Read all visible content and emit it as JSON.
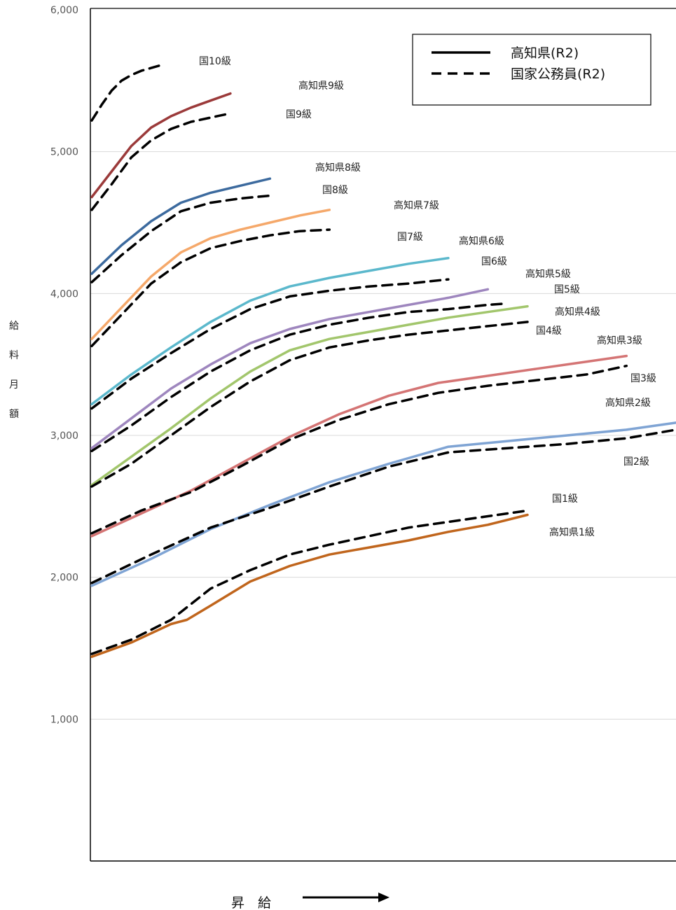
{
  "chart_data": {
    "type": "line",
    "title": "",
    "ylabel": "給料月額",
    "xlabel": "昇給",
    "ylim": [
      0,
      6000
    ],
    "yticks": [
      "1,000",
      "2,000",
      "3,000",
      "4,000",
      "5,000",
      "6,000"
    ],
    "ytick_values": [
      1000,
      2000,
      3000,
      4000,
      5000,
      6000
    ],
    "grid": true,
    "legend_position": "top-right",
    "legend": [
      {
        "label": "高知県(R2)",
        "style": "solid"
      },
      {
        "label": "国家公務員(R2)",
        "style": "dashed"
      }
    ],
    "series": [
      {
        "name": "国10級",
        "style": "dashed",
        "color": "#000000",
        "x": [
          0,
          5,
          10,
          15,
          20,
          25,
          30,
          35
        ],
        "y": [
          5220,
          5330,
          5430,
          5500,
          5540,
          5570,
          5590,
          5610
        ]
      },
      {
        "name": "高知県9級",
        "style": "solid",
        "color": "#9B3A3A",
        "x": [
          0,
          10,
          20,
          30,
          40,
          50,
          60,
          70
        ],
        "y": [
          4680,
          4860,
          5040,
          5170,
          5250,
          5310,
          5360,
          5410
        ]
      },
      {
        "name": "国9級",
        "style": "dashed",
        "color": "#000000",
        "x": [
          0,
          10,
          20,
          30,
          40,
          50,
          60,
          70
        ],
        "y": [
          4590,
          4770,
          4960,
          5080,
          5160,
          5210,
          5240,
          5270
        ]
      },
      {
        "name": "高知県8級",
        "style": "solid",
        "color": "#3C6A9E",
        "x": [
          0,
          15,
          30,
          45,
          60,
          75,
          90
        ],
        "y": [
          4140,
          4340,
          4510,
          4640,
          4710,
          4760,
          4810
        ]
      },
      {
        "name": "国8級",
        "style": "dashed",
        "color": "#000000",
        "x": [
          0,
          15,
          30,
          45,
          60,
          75,
          90
        ],
        "y": [
          4080,
          4270,
          4440,
          4580,
          4640,
          4670,
          4690
        ]
      },
      {
        "name": "高知県7級",
        "style": "solid",
        "color": "#F5A86A",
        "x": [
          0,
          15,
          30,
          45,
          60,
          75,
          90,
          105,
          120
        ],
        "y": [
          3680,
          3900,
          4120,
          4290,
          4390,
          4450,
          4500,
          4550,
          4590
        ]
      },
      {
        "name": "国7級",
        "style": "dashed",
        "color": "#000000",
        "x": [
          0,
          15,
          30,
          45,
          60,
          75,
          90,
          105,
          120
        ],
        "y": [
          3630,
          3850,
          4070,
          4220,
          4320,
          4370,
          4410,
          4440,
          4450
        ]
      },
      {
        "name": "高知県6級",
        "style": "solid",
        "color": "#5BB8CC",
        "x": [
          0,
          20,
          40,
          60,
          80,
          100,
          120,
          140,
          160,
          180
        ],
        "y": [
          3220,
          3430,
          3620,
          3800,
          3950,
          4050,
          4110,
          4160,
          4210,
          4250
        ]
      },
      {
        "name": "国6級",
        "style": "dashed",
        "color": "#000000",
        "x": [
          0,
          20,
          40,
          60,
          80,
          100,
          120,
          140,
          160,
          180
        ],
        "y": [
          3190,
          3400,
          3580,
          3750,
          3890,
          3980,
          4020,
          4050,
          4070,
          4100
        ]
      },
      {
        "name": "高知県5級",
        "style": "solid",
        "color": "#9E86BE",
        "x": [
          0,
          20,
          40,
          60,
          80,
          100,
          120,
          140,
          160,
          180,
          200
        ],
        "y": [
          2910,
          3120,
          3330,
          3500,
          3650,
          3750,
          3820,
          3870,
          3920,
          3970,
          4030
        ]
      },
      {
        "name": "国5級",
        "style": "dashed",
        "color": "#000000",
        "x": [
          0,
          20,
          40,
          60,
          80,
          100,
          120,
          140,
          160,
          180,
          200,
          210
        ],
        "y": [
          2890,
          3070,
          3270,
          3450,
          3600,
          3710,
          3780,
          3830,
          3870,
          3890,
          3920,
          3930
        ]
      },
      {
        "name": "高知県4級",
        "style": "solid",
        "color": "#A2C66C",
        "x": [
          0,
          20,
          40,
          60,
          80,
          100,
          120,
          140,
          160,
          180,
          200,
          220
        ],
        "y": [
          2650,
          2850,
          3050,
          3260,
          3450,
          3600,
          3680,
          3730,
          3780,
          3830,
          3870,
          3910
        ]
      },
      {
        "name": "国4級",
        "style": "dashed",
        "color": "#000000",
        "x": [
          0,
          20,
          40,
          60,
          80,
          100,
          120,
          140,
          160,
          180,
          200,
          220
        ],
        "y": [
          2640,
          2800,
          3000,
          3200,
          3380,
          3530,
          3620,
          3670,
          3710,
          3740,
          3770,
          3800
        ]
      },
      {
        "name": "高知県3級",
        "style": "solid",
        "color": "#D47474",
        "x": [
          0,
          25,
          50,
          75,
          100,
          125,
          150,
          175,
          200,
          225,
          250,
          270
        ],
        "y": [
          2290,
          2450,
          2610,
          2800,
          2990,
          3150,
          3280,
          3370,
          3420,
          3470,
          3520,
          3560
        ]
      },
      {
        "name": "国3級",
        "style": "dashed",
        "color": "#000000",
        "x": [
          0,
          25,
          50,
          75,
          100,
          125,
          150,
          175,
          200,
          225,
          250,
          270
        ],
        "y": [
          2310,
          2470,
          2600,
          2780,
          2970,
          3110,
          3220,
          3300,
          3350,
          3390,
          3430,
          3490
        ]
      },
      {
        "name": "高知県2級",
        "style": "solid",
        "color": "#7FA4D4",
        "x": [
          0,
          30,
          60,
          90,
          120,
          150,
          180,
          210,
          240,
          270,
          295
        ],
        "y": [
          1940,
          2130,
          2340,
          2510,
          2670,
          2800,
          2920,
          2960,
          3000,
          3040,
          3090
        ]
      },
      {
        "name": "国2級",
        "style": "dashed",
        "color": "#000000",
        "x": [
          0,
          30,
          60,
          90,
          120,
          150,
          180,
          210,
          240,
          270,
          295
        ],
        "y": [
          1960,
          2160,
          2350,
          2490,
          2640,
          2780,
          2880,
          2910,
          2940,
          2980,
          3040
        ]
      },
      {
        "name": "国1級",
        "style": "dashed",
        "color": "#000000",
        "x": [
          0,
          20,
          40,
          60,
          80,
          100,
          120,
          140,
          160,
          180,
          200,
          220
        ],
        "y": [
          1460,
          1560,
          1700,
          1920,
          2050,
          2160,
          2230,
          2290,
          2350,
          2390,
          2430,
          2470
        ]
      },
      {
        "name": "高知県1級",
        "style": "solid",
        "color": "#C0651C",
        "x": [
          0,
          20,
          40,
          48,
          60,
          80,
          100,
          120,
          140,
          160,
          180,
          200,
          220
        ],
        "y": [
          1440,
          1540,
          1670,
          1700,
          1800,
          1970,
          2080,
          2160,
          2210,
          2260,
          2320,
          2370,
          2440
        ]
      }
    ]
  },
  "legend_labels": {
    "solid": "高知県(R2)",
    "dashed": "国家公務員(R2)"
  },
  "axis": {
    "ylabel_chars": [
      "給",
      "料",
      "月",
      "額"
    ],
    "xlabel_chars": [
      "昇",
      "給"
    ]
  }
}
